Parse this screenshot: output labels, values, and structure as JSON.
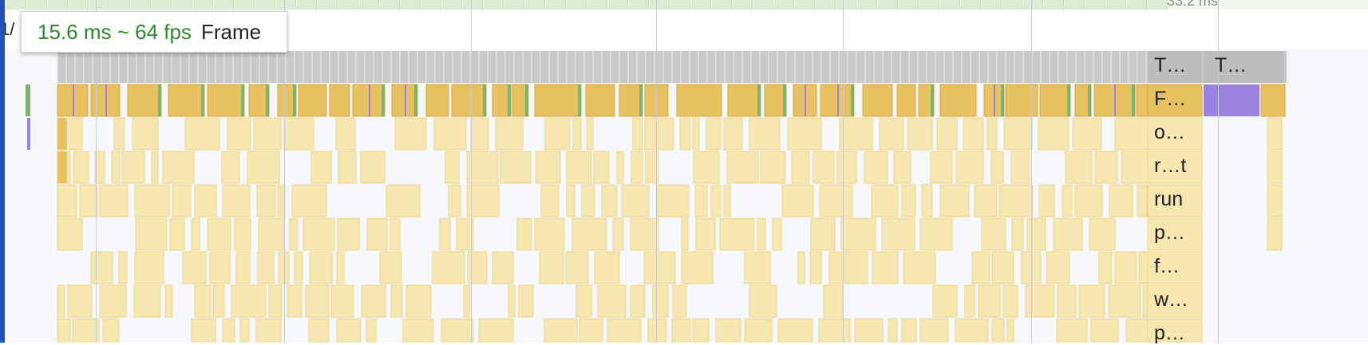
{
  "tooltip": {
    "fps_text": "15.6 ms ~ 64 fps",
    "title": "Frame"
  },
  "frames_strip": {
    "label": "33.2 ms"
  },
  "header_row": {
    "text": "1/"
  },
  "track_labels": [
    {
      "name": "T…",
      "row": "task"
    },
    {
      "name": "T…",
      "row": "task"
    },
    {
      "name": "F…",
      "row": "function"
    },
    {
      "name": "o…",
      "row": "call"
    },
    {
      "name": "r…t",
      "row": "call"
    },
    {
      "name": "run",
      "row": "call"
    },
    {
      "name": "p…",
      "row": "call"
    },
    {
      "name": "f…",
      "row": "call"
    },
    {
      "name": "w…",
      "row": "call"
    },
    {
      "name": "p…",
      "row": "call"
    }
  ],
  "colors": {
    "task": "#c8c8c8",
    "function": "#e8c260",
    "call": "#f6e6b0",
    "scripting_green": "#7fb36b",
    "rendering_purple": "#9b84e0",
    "selection_border": "#1f54b6",
    "fps_text": "#2f8a2f"
  }
}
